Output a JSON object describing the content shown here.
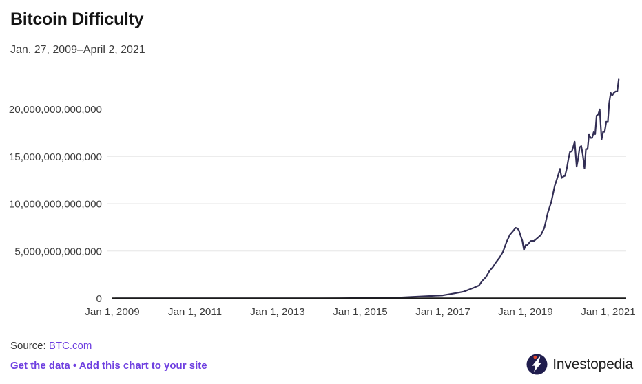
{
  "header": {
    "title": "Bitcoin Difficulty",
    "subtitle": "Jan. 27, 2009–April 2, 2021"
  },
  "chart_data": {
    "type": "line",
    "title": "Bitcoin Difficulty",
    "subtitle_range": "Jan. 27, 2009–April 2, 2021",
    "ylabel": "",
    "xlabel": "",
    "unit_note": "y values stored in trillions; axis labels show absolute difficulty",
    "ylim_trillions": [
      0,
      24
    ],
    "grid": "horizontal only",
    "legend": "none",
    "line_color": "#322e55",
    "axis_color": "#1b1b1b",
    "grid_color": "#e5e5e5",
    "tick_text_color": "#3c3c3c",
    "x_axis": {
      "ticks": [
        {
          "year": 2009,
          "label": "Jan 1, 2009"
        },
        {
          "year": 2011,
          "label": "Jan 1, 2011"
        },
        {
          "year": 2013,
          "label": "Jan 1, 2013"
        },
        {
          "year": 2015,
          "label": "Jan 1, 2015"
        },
        {
          "year": 2017,
          "label": "Jan 1, 2017"
        },
        {
          "year": 2019,
          "label": "Jan 1, 2019"
        },
        {
          "year": 2021,
          "label": "Jan 1, 2021"
        }
      ]
    },
    "y_axis": {
      "ticks": [
        {
          "value_trillions": 0,
          "label": "0"
        },
        {
          "value_trillions": 5,
          "label": "5,000,000,000,000"
        },
        {
          "value_trillions": 10,
          "label": "10,000,000,000,000"
        },
        {
          "value_trillions": 15,
          "label": "15,000,000,000,000"
        },
        {
          "value_trillions": 20,
          "label": "20,000,000,000,000"
        }
      ]
    },
    "series": [
      {
        "name": "Bitcoin difficulty",
        "points_trillions": [
          [
            "2009-01-27",
            0
          ],
          [
            "2010-01-01",
            0
          ],
          [
            "2011-01-01",
            1e-08
          ],
          [
            "2012-01-01",
            1e-06
          ],
          [
            "2013-01-01",
            3e-06
          ],
          [
            "2013-07-01",
            2e-05
          ],
          [
            "2014-01-01",
            0.0012
          ],
          [
            "2014-07-01",
            0.017
          ],
          [
            "2015-01-01",
            0.044
          ],
          [
            "2015-07-01",
            0.048
          ],
          [
            "2016-01-01",
            0.104
          ],
          [
            "2016-07-01",
            0.209
          ],
          [
            "2017-01-01",
            0.318
          ],
          [
            "2017-04-01",
            0.5
          ],
          [
            "2017-07-01",
            0.708
          ],
          [
            "2017-10-01",
            1.124
          ],
          [
            "2017-11-15",
            1.35
          ],
          [
            "2017-12-15",
            1.87
          ],
          [
            "2018-01-15",
            2.23
          ],
          [
            "2018-02-15",
            2.87
          ],
          [
            "2018-03-15",
            3.29
          ],
          [
            "2018-04-15",
            3.84
          ],
          [
            "2018-05-15",
            4.31
          ],
          [
            "2018-06-15",
            4.94
          ],
          [
            "2018-07-15",
            5.95
          ],
          [
            "2018-08-15",
            6.73
          ],
          [
            "2018-09-15",
            7.15
          ],
          [
            "2018-10-04",
            7.45
          ],
          [
            "2018-10-20",
            7.39
          ],
          [
            "2018-11-03",
            7.18
          ],
          [
            "2018-11-17",
            6.65
          ],
          [
            "2018-12-03",
            6.07
          ],
          [
            "2018-12-17",
            5.11
          ],
          [
            "2018-12-31",
            5.62
          ],
          [
            "2019-01-15",
            5.61
          ],
          [
            "2019-02-15",
            6.06
          ],
          [
            "2019-03-15",
            6.07
          ],
          [
            "2019-04-15",
            6.38
          ],
          [
            "2019-05-15",
            6.7
          ],
          [
            "2019-06-15",
            7.46
          ],
          [
            "2019-07-15",
            9.06
          ],
          [
            "2019-08-15",
            10.18
          ],
          [
            "2019-09-15",
            11.89
          ],
          [
            "2019-10-15",
            13.01
          ],
          [
            "2019-11-01",
            13.69
          ],
          [
            "2019-11-15",
            12.72
          ],
          [
            "2019-12-01",
            12.88
          ],
          [
            "2019-12-15",
            12.95
          ],
          [
            "2020-01-01",
            13.8
          ],
          [
            "2020-01-15",
            14.78
          ],
          [
            "2020-01-28",
            15.47
          ],
          [
            "2020-02-15",
            15.55
          ],
          [
            "2020-03-09",
            16.55
          ],
          [
            "2020-03-26",
            13.91
          ],
          [
            "2020-04-08",
            14.72
          ],
          [
            "2020-04-22",
            15.96
          ],
          [
            "2020-05-06",
            16.1
          ],
          [
            "2020-05-20",
            15.14
          ],
          [
            "2020-06-04",
            13.73
          ],
          [
            "2020-06-17",
            15.78
          ],
          [
            "2020-07-01",
            15.78
          ],
          [
            "2020-07-14",
            17.35
          ],
          [
            "2020-07-28",
            16.95
          ],
          [
            "2020-08-11",
            16.95
          ],
          [
            "2020-08-24",
            17.56
          ],
          [
            "2020-09-07",
            17.35
          ],
          [
            "2020-09-20",
            19.31
          ],
          [
            "2020-10-04",
            19.44
          ],
          [
            "2020-10-17",
            19.97
          ],
          [
            "2020-11-03",
            16.79
          ],
          [
            "2020-11-16",
            17.6
          ],
          [
            "2020-11-30",
            17.6
          ],
          [
            "2020-12-14",
            18.67
          ],
          [
            "2020-12-28",
            18.6
          ],
          [
            "2021-01-09",
            20.61
          ],
          [
            "2021-01-23",
            21.72
          ],
          [
            "2021-02-06",
            21.43
          ],
          [
            "2021-02-20",
            21.72
          ],
          [
            "2021-03-06",
            21.87
          ],
          [
            "2021-03-20",
            21.87
          ],
          [
            "2021-04-02",
            23.14
          ]
        ]
      }
    ]
  },
  "footer": {
    "source_label": "Source: ",
    "source_link": "BTC.com",
    "get_data_link": "Get the data",
    "separator": " • ",
    "add_chart_link": "Add this chart to your site",
    "link_color": "#6e3fe0"
  },
  "branding": {
    "logo_text": "Investopedia",
    "logo_icon": "investopedia-circle-bolt-icon",
    "icon_circle_color": "#201d4e",
    "icon_dot_color": "#e2492f"
  }
}
